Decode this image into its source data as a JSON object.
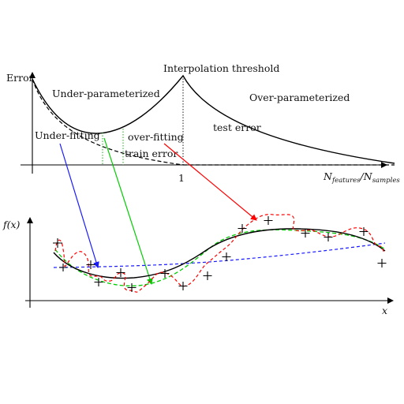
{
  "labels": {
    "error_axis": "Error",
    "interpolation_threshold": "Interpolation threshold",
    "under_parameterized": "Under-parameterized",
    "over_parameterized": "Over-parameterized",
    "under_fitting": "Under-fitting",
    "over_fitting": "over-fitting",
    "test_error": "test error",
    "train_error": "train error",
    "threshold_tick": "1",
    "ratio_main": "N",
    "ratio_sub_num": "features",
    "ratio_slash": "/N",
    "ratio_sub_den": "samples",
    "fx_axis": "f(x)",
    "x_axis": "x"
  },
  "colors": {
    "axes": "#000000",
    "test_error_curve": "#000000",
    "train_error_curve": "#000000",
    "under_fit_link": "#1a1aff",
    "good_fit_link": "#00cc00",
    "over_fit_link": "#ff0000",
    "true_function": "#000000",
    "under_fit_model": "#1a1aff",
    "good_fit_model": "#00cc00",
    "over_fit_model": "#ff0000",
    "sample_points": "#000000"
  },
  "icons": {
    "sample_marker": "plus-marker"
  }
}
